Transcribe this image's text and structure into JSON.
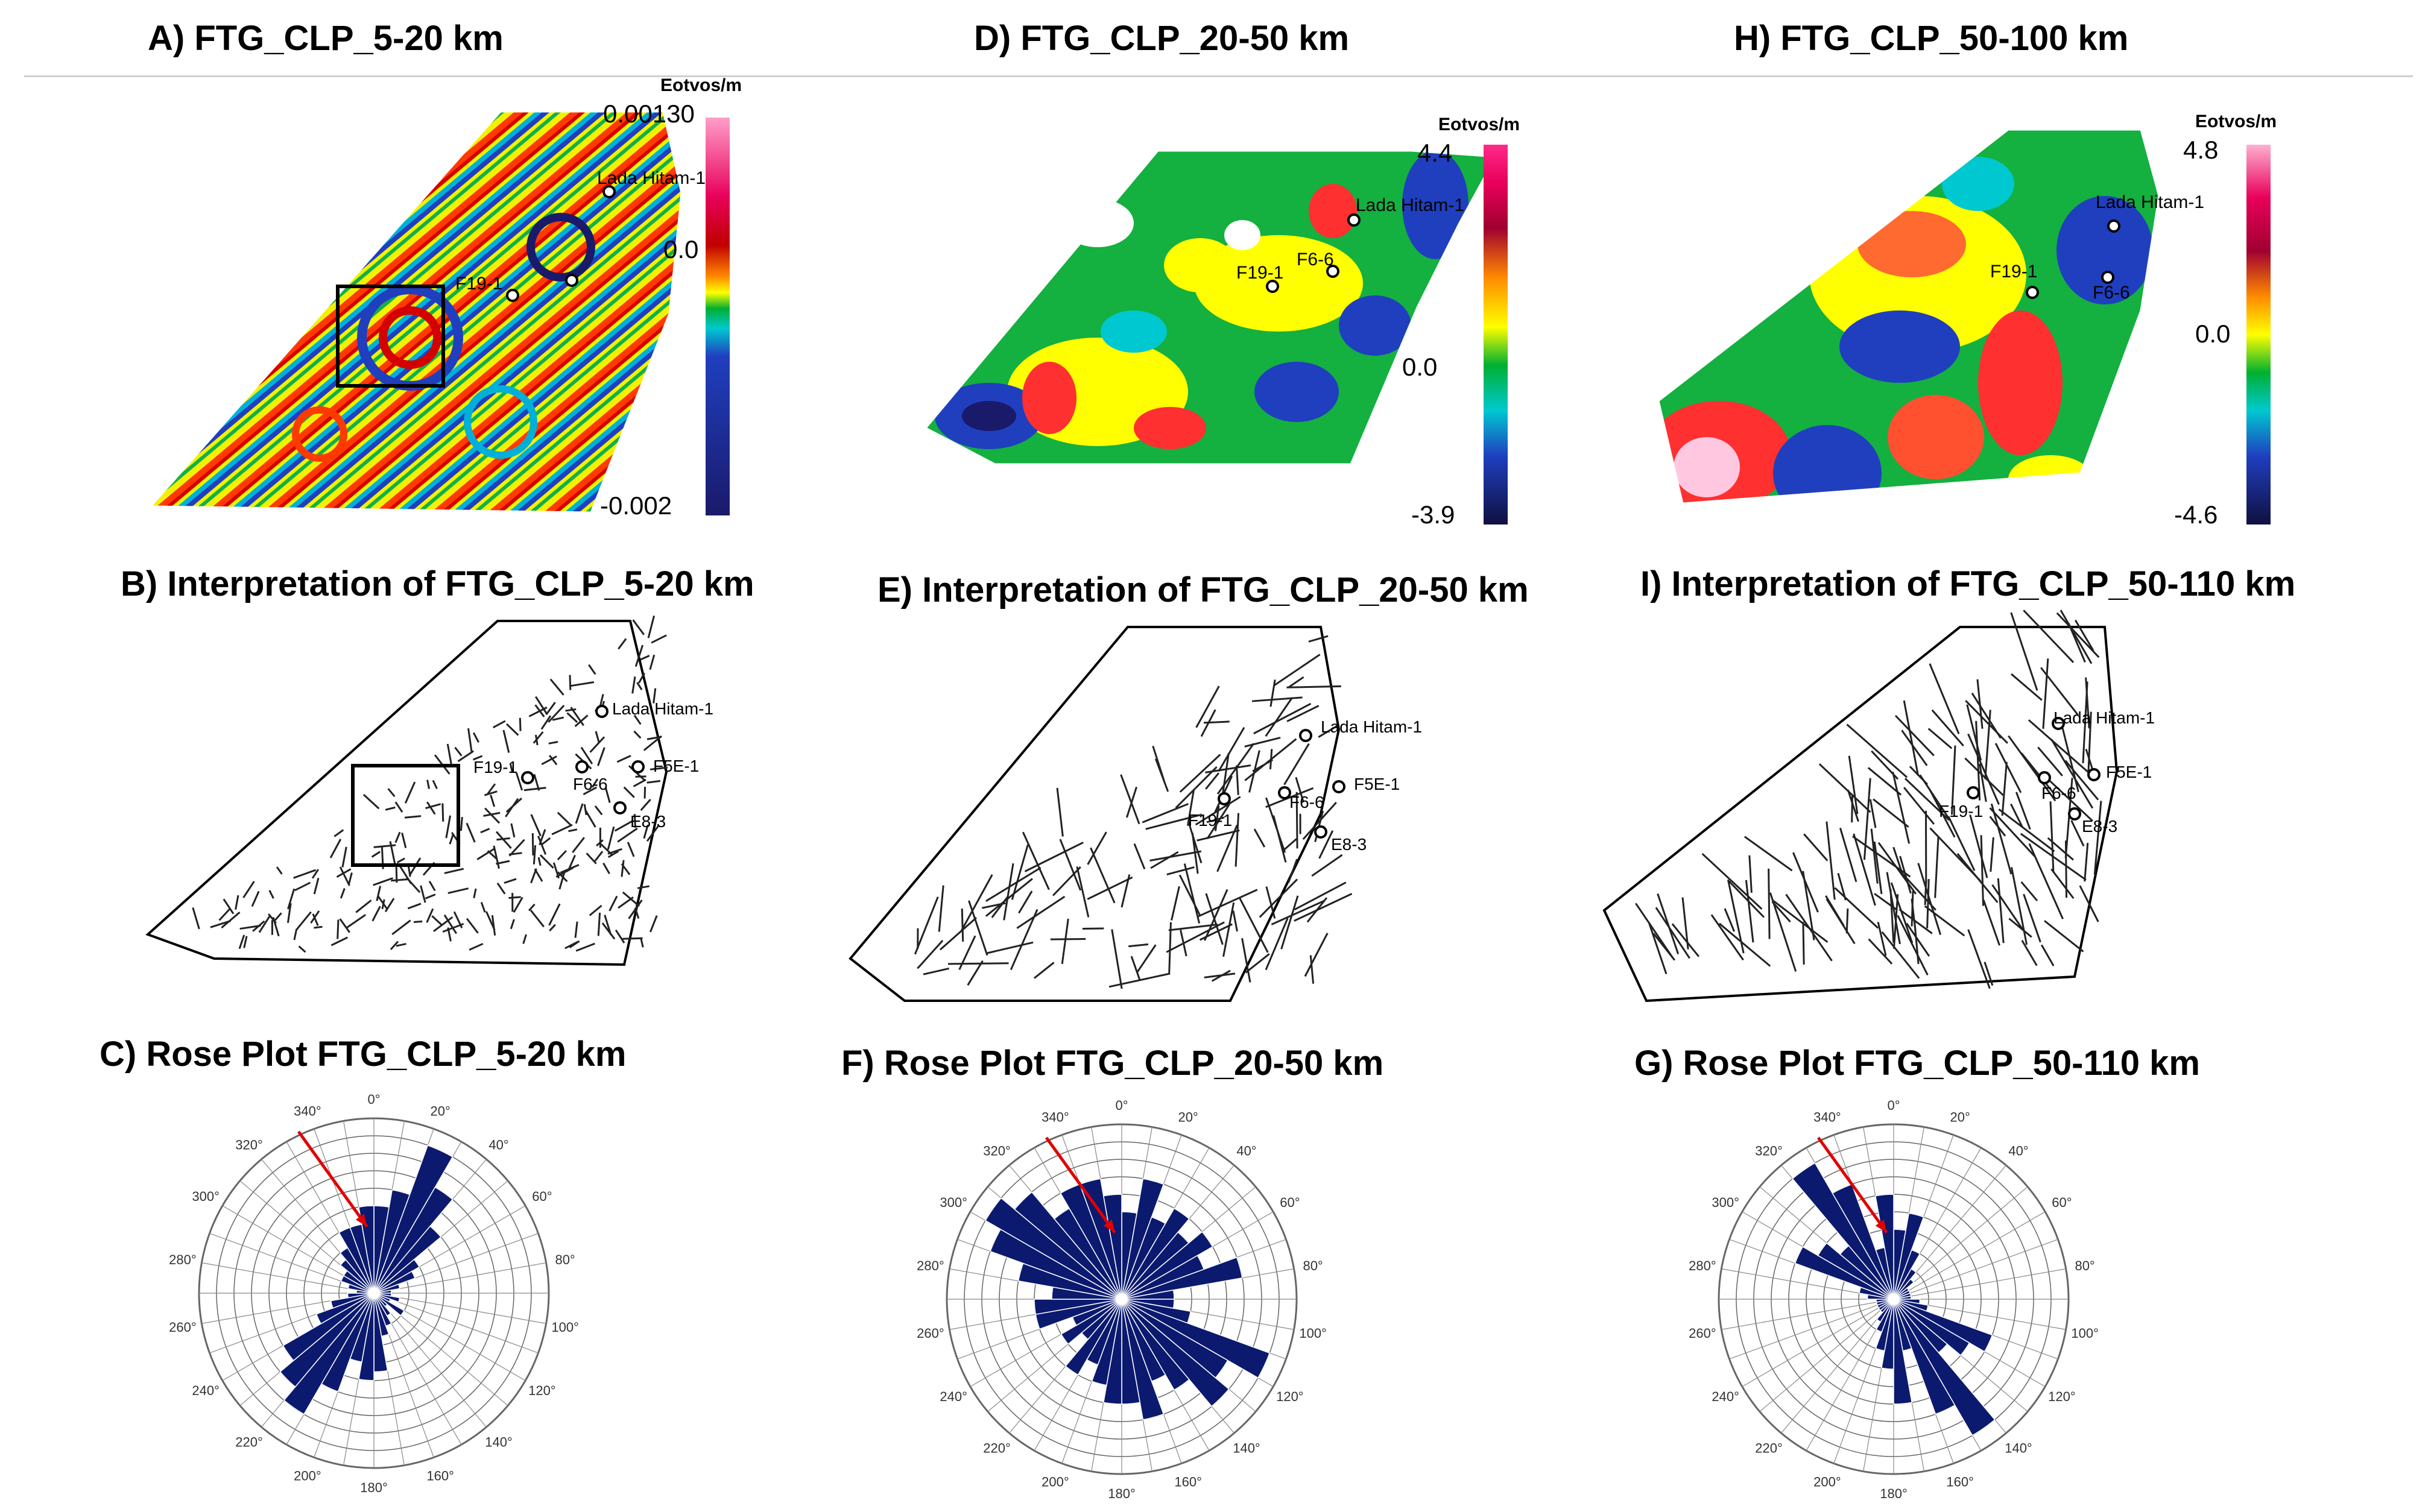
{
  "panels": {
    "a": {
      "title": "A)  FTG_CLP_5-20 km",
      "unit": "Eotvos/m",
      "max": "0.00130",
      "mid": "0.0",
      "min": "-0.002"
    },
    "d": {
      "title": "D)  FTG_CLP_20-50 km",
      "unit": "Eotvos/m",
      "max": "4.4",
      "mid": "0.0",
      "min": "-3.9"
    },
    "h": {
      "title": "H)  FTG_CLP_50-100 km",
      "unit": "Eotvos/m",
      "max": "4.8",
      "mid": "0.0",
      "min": "-4.6"
    },
    "b": {
      "title": "B)  Interpretation of FTG_CLP_5-20 km"
    },
    "e": {
      "title": "E)  Interpretation of FTG_CLP_20-50 km"
    },
    "i": {
      "title": "I)  Interpretation of FTG_CLP_50-110 km"
    },
    "c": {
      "title": "C)  Rose Plot FTG_CLP_5-20 km"
    },
    "f": {
      "title": "F)  Rose Plot FTG_CLP_20-50 km"
    },
    "g": {
      "title": "G)  Rose Plot FTG_CLP_50-110 km"
    }
  },
  "wells": {
    "lada": "Lada Hitam-1",
    "f19": "F19-1",
    "f6": "F6-6",
    "f5e": "F5E-1",
    "e8": "E8-3"
  },
  "colors": {
    "rose_fill": "#0b1a6e",
    "arrow": "#e00000",
    "colorbar": [
      "#ff9ec8",
      "#e8005a",
      "#c00000",
      "#ff8a00",
      "#ffff00",
      "#00b030",
      "#00c8d0",
      "#1f3fbf",
      "#1a1a6a"
    ]
  },
  "chart_data": [
    {
      "type": "rose",
      "title": "C)  Rose Plot FTG_CLP_5-20 km",
      "angle_labels": [
        "0°",
        "20°",
        "40°",
        "60°",
        "80°",
        "100°",
        "120°",
        "140°",
        "160°",
        "180°",
        "200°",
        "220°",
        "240°",
        "260°",
        "280°",
        "300°",
        "320°",
        "340°"
      ],
      "bin_width_deg": 10,
      "bin_start_deg": [
        0,
        10,
        20,
        30,
        40,
        50,
        60,
        70,
        80,
        90,
        100,
        110,
        120,
        130,
        140,
        150,
        160,
        170,
        180,
        190,
        200,
        210,
        220,
        230,
        240,
        250,
        260,
        270,
        280,
        290,
        300,
        310,
        320,
        330,
        340,
        350
      ],
      "values": [
        5,
        6,
        9,
        7,
        5,
        3,
        2.5,
        1.5,
        1,
        1,
        1.5,
        1,
        2,
        1,
        1.5,
        2,
        2.5,
        4.5,
        5,
        4,
        6,
        8,
        7,
        6,
        3.5,
        2.5,
        1.5,
        1,
        1.5,
        2,
        2,
        2.5,
        3,
        4,
        4,
        5
      ],
      "rmax": 10,
      "annotation_arrow_deg": 335
    },
    {
      "type": "rose",
      "title": "F)  Rose Plot FTG_CLP_20-50 km",
      "angle_labels": [
        "0°",
        "20°",
        "40°",
        "60°",
        "80°",
        "100°",
        "120°",
        "140°",
        "160°",
        "180°",
        "200°",
        "220°",
        "240°",
        "260°",
        "280°",
        "300°",
        "320°",
        "340°"
      ],
      "bin_width_deg": 10,
      "bin_start_deg": [
        0,
        10,
        20,
        30,
        40,
        50,
        60,
        70,
        80,
        90,
        100,
        110,
        120,
        130,
        140,
        150,
        160,
        170,
        180,
        190,
        200,
        210,
        220,
        230,
        240,
        250,
        260,
        270,
        280,
        290,
        300,
        310,
        320,
        330,
        340,
        350
      ],
      "values": [
        5,
        7,
        5,
        6,
        5,
        6,
        5,
        7,
        3,
        3,
        4,
        9,
        7,
        8,
        6,
        5,
        7,
        6,
        6,
        5,
        4,
        5,
        3,
        4,
        3,
        5,
        5,
        4,
        6,
        8,
        9,
        8,
        6,
        7,
        7,
        6
      ],
      "rmax": 10,
      "annotation_arrow_deg": 335
    },
    {
      "type": "rose",
      "title": "G)  Rose Plot FTG_CLP_50-110 km",
      "angle_labels": [
        "0°",
        "20°",
        "40°",
        "60°",
        "80°",
        "100°",
        "120°",
        "140°",
        "160°",
        "180°",
        "200°",
        "220°",
        "240°",
        "260°",
        "280°",
        "300°",
        "320°",
        "340°"
      ],
      "bin_width_deg": 10,
      "bin_start_deg": [
        0,
        10,
        20,
        30,
        40,
        50,
        60,
        70,
        80,
        90,
        100,
        110,
        120,
        130,
        140,
        150,
        160,
        170,
        180,
        190,
        200,
        210,
        220,
        230,
        240,
        250,
        260,
        270,
        280,
        290,
        300,
        310,
        320,
        330,
        340,
        350
      ],
      "values": [
        4,
        5,
        3,
        2,
        1.5,
        1,
        1,
        1,
        1,
        1.5,
        2,
        6,
        5,
        4,
        9,
        7,
        3,
        6,
        4,
        3,
        2,
        1.5,
        1,
        1,
        1,
        1,
        1,
        1.5,
        2,
        6,
        5,
        4,
        9,
        7,
        3,
        6
      ],
      "rmax": 10,
      "annotation_arrow_deg": 335
    }
  ]
}
